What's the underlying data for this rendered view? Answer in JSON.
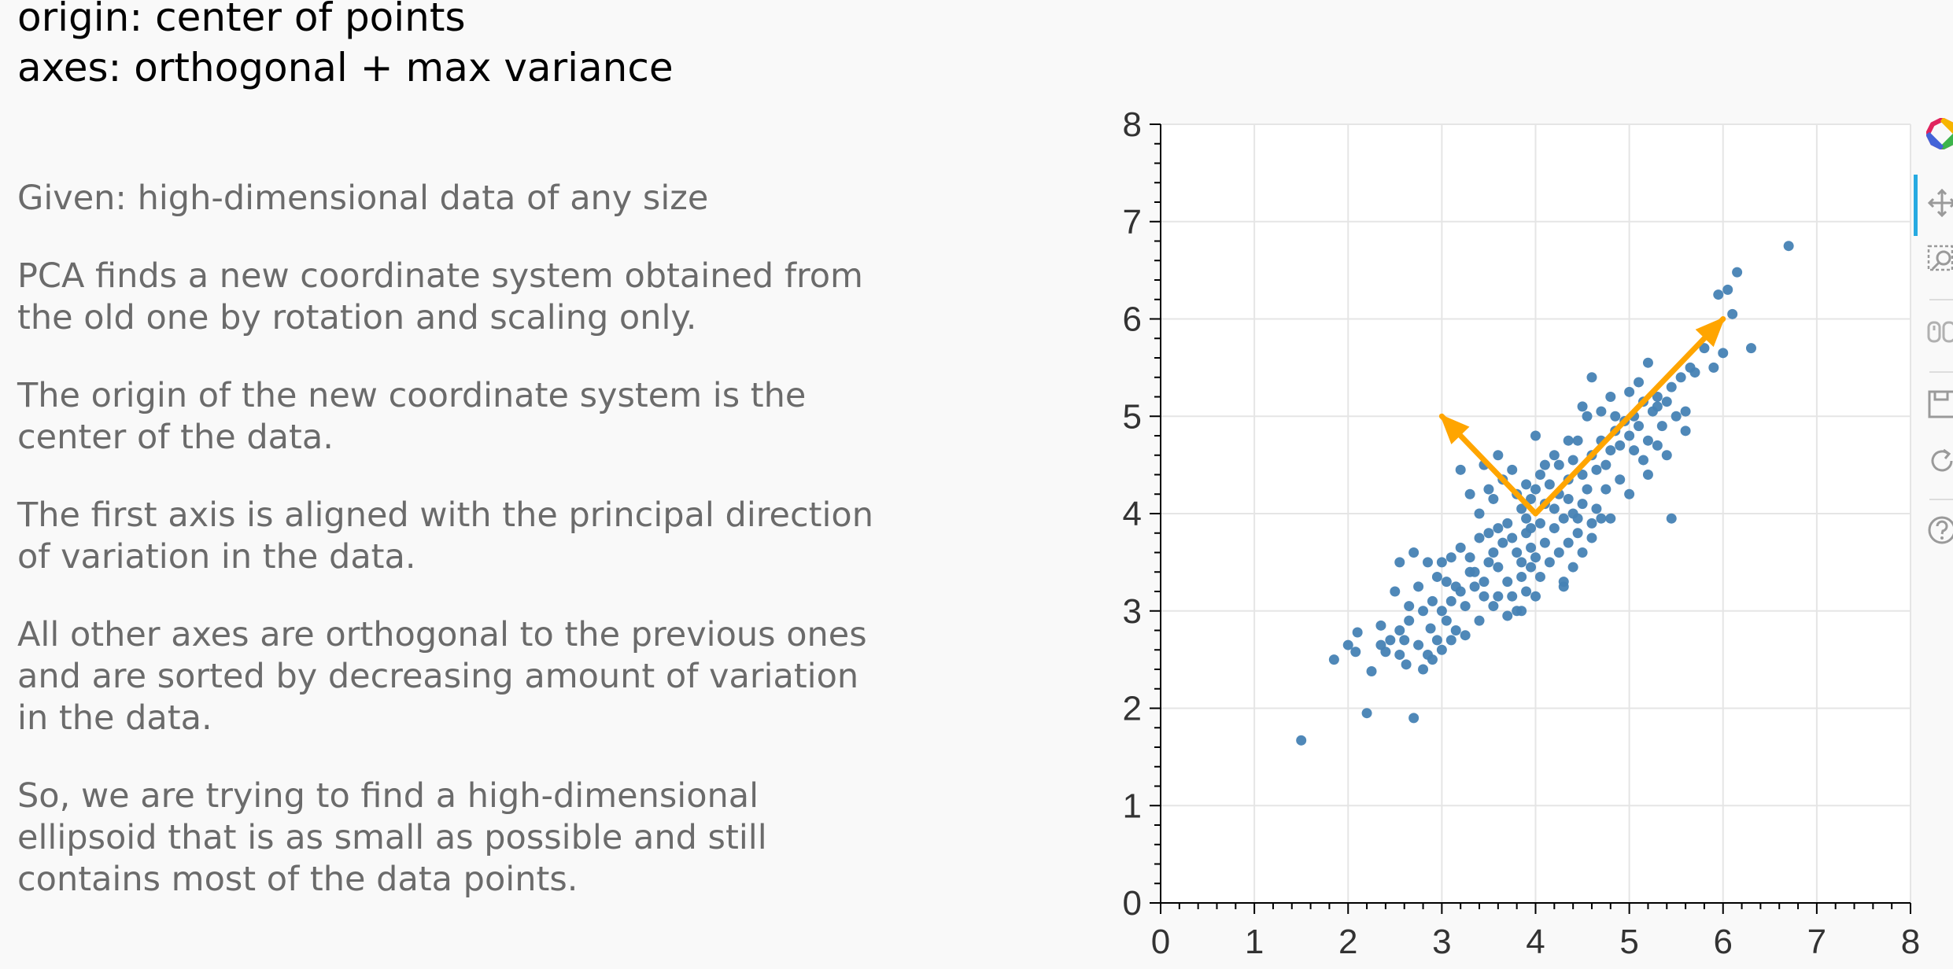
{
  "slide": {
    "title_lines": [
      "origin: center of points",
      "axes: orthogonal + max variance"
    ],
    "paragraphs": [
      "Given: high-dimensional data of any size",
      "PCA finds a new coordinate system obtained from\nthe old one by rotation and scaling only.",
      "The origin of the new coordinate system is the\ncenter of the data.",
      "The first axis is aligned with the principal direction\nof variation in the data.",
      "All other axes are orthogonal to the previous ones\nand are sorted by decreasing amount of variation\nin the data.",
      "So, we are trying to find a high-dimensional\nellipsoid that is as small as possible and still\ncontains most of the data points."
    ]
  },
  "toolbar": {
    "tools": [
      "bokeh-logo-icon",
      "pan-icon",
      "box-zoom-icon",
      "wheel-zoom-icon",
      "save-icon",
      "reset-icon",
      "help-icon"
    ],
    "active_tool": "pan-icon"
  },
  "chart_data": {
    "type": "scatter",
    "title": "",
    "xlabel": "",
    "ylabel": "",
    "xlim": [
      0,
      8
    ],
    "ylim": [
      0,
      8
    ],
    "xticks": [
      "0",
      "1",
      "2",
      "3",
      "4",
      "5",
      "6",
      "7",
      "8"
    ],
    "yticks": [
      "0",
      "1",
      "2",
      "3",
      "4",
      "5",
      "6",
      "7",
      "8"
    ],
    "grid": true,
    "point_color": "#4682b4",
    "arrow_color": "#ffa500",
    "points": [
      [
        1.5,
        1.67
      ],
      [
        1.85,
        2.5
      ],
      [
        2.0,
        2.65
      ],
      [
        2.1,
        2.78
      ],
      [
        2.08,
        2.58
      ],
      [
        2.2,
        1.95
      ],
      [
        2.25,
        2.38
      ],
      [
        2.35,
        2.65
      ],
      [
        2.4,
        2.58
      ],
      [
        2.45,
        2.7
      ],
      [
        2.55,
        2.55
      ],
      [
        2.6,
        2.7
      ],
      [
        2.62,
        2.45
      ],
      [
        2.65,
        2.9
      ],
      [
        2.7,
        1.9
      ],
      [
        2.75,
        2.65
      ],
      [
        2.8,
        2.4
      ],
      [
        2.85,
        2.55
      ],
      [
        2.88,
        2.82
      ],
      [
        2.9,
        2.5
      ],
      [
        2.95,
        2.7
      ],
      [
        3.0,
        2.6
      ],
      [
        2.8,
        3.0
      ],
      [
        2.9,
        3.1
      ],
      [
        3.0,
        3.0
      ],
      [
        3.05,
        2.9
      ],
      [
        3.1,
        3.1
      ],
      [
        3.15,
        2.8
      ],
      [
        3.2,
        3.2
      ],
      [
        3.25,
        2.75
      ],
      [
        3.3,
        3.4
      ],
      [
        3.05,
        3.3
      ],
      [
        2.5,
        3.2
      ],
      [
        2.55,
        3.5
      ],
      [
        2.7,
        3.6
      ],
      [
        2.85,
        3.5
      ],
      [
        3.0,
        3.5
      ],
      [
        3.1,
        3.55
      ],
      [
        3.2,
        3.65
      ],
      [
        3.3,
        3.55
      ],
      [
        3.35,
        3.4
      ],
      [
        3.45,
        3.3
      ],
      [
        3.5,
        3.5
      ],
      [
        3.55,
        3.6
      ],
      [
        3.6,
        3.45
      ],
      [
        3.65,
        3.7
      ],
      [
        3.4,
        3.75
      ],
      [
        3.5,
        3.8
      ],
      [
        3.6,
        3.85
      ],
      [
        3.7,
        3.9
      ],
      [
        3.75,
        3.75
      ],
      [
        3.8,
        3.6
      ],
      [
        3.85,
        3.5
      ],
      [
        3.9,
        3.8
      ],
      [
        3.95,
        3.65
      ],
      [
        3.7,
        3.3
      ],
      [
        3.75,
        3.15
      ],
      [
        3.8,
        3.0
      ],
      [
        3.85,
        3.35
      ],
      [
        3.9,
        3.2
      ],
      [
        3.95,
        3.45
      ],
      [
        4.0,
        3.55
      ],
      [
        4.05,
        3.35
      ],
      [
        4.1,
        3.7
      ],
      [
        4.15,
        3.5
      ],
      [
        4.2,
        3.85
      ],
      [
        4.25,
        3.6
      ],
      [
        4.3,
        3.25
      ],
      [
        4.3,
        3.95
      ],
      [
        4.35,
        3.7
      ],
      [
        4.4,
        4.0
      ],
      [
        4.45,
        3.8
      ],
      [
        4.5,
        4.1
      ],
      [
        3.85,
        4.05
      ],
      [
        3.9,
        3.95
      ],
      [
        3.95,
        4.15
      ],
      [
        4.0,
        4.25
      ],
      [
        4.05,
        4.4
      ],
      [
        4.1,
        4.1
      ],
      [
        4.15,
        4.3
      ],
      [
        4.2,
        4.05
      ],
      [
        4.25,
        4.5
      ],
      [
        4.35,
        4.35
      ],
      [
        4.4,
        4.55
      ],
      [
        4.5,
        4.4
      ],
      [
        4.55,
        4.25
      ],
      [
        4.6,
        4.6
      ],
      [
        4.65,
        4.45
      ],
      [
        4.7,
        4.75
      ],
      [
        4.75,
        4.5
      ],
      [
        4.8,
        4.65
      ],
      [
        4.85,
        4.85
      ],
      [
        4.9,
        4.7
      ],
      [
        4.95,
        4.95
      ],
      [
        5.0,
        4.8
      ],
      [
        5.05,
        5.0
      ],
      [
        5.1,
        4.9
      ],
      [
        5.15,
        5.15
      ],
      [
        5.2,
        4.75
      ],
      [
        5.25,
        5.05
      ],
      [
        5.3,
        5.2
      ],
      [
        5.35,
        4.9
      ],
      [
        5.4,
        5.15
      ],
      [
        5.45,
        5.3
      ],
      [
        5.5,
        5.0
      ],
      [
        5.55,
        5.4
      ],
      [
        5.6,
        5.05
      ],
      [
        5.65,
        5.5
      ],
      [
        5.7,
        5.45
      ],
      [
        5.8,
        5.7
      ],
      [
        5.85,
        5.85
      ],
      [
        5.9,
        5.5
      ],
      [
        6.0,
        5.65
      ],
      [
        6.05,
        6.3
      ],
      [
        6.1,
        6.05
      ],
      [
        6.15,
        6.48
      ],
      [
        6.3,
        5.7
      ],
      [
        6.7,
        6.75
      ],
      [
        5.95,
        6.25
      ],
      [
        5.45,
        3.95
      ],
      [
        5.15,
        4.55
      ],
      [
        5.3,
        4.7
      ],
      [
        5.05,
        4.65
      ],
      [
        4.9,
        4.35
      ],
      [
        4.75,
        4.25
      ],
      [
        4.65,
        4.05
      ],
      [
        4.7,
        3.95
      ],
      [
        4.6,
        3.9
      ],
      [
        4.5,
        3.6
      ],
      [
        4.3,
        3.3
      ],
      [
        3.5,
        4.25
      ],
      [
        3.6,
        4.6
      ],
      [
        3.45,
        4.5
      ],
      [
        3.4,
        4.0
      ],
      [
        3.3,
        4.2
      ],
      [
        3.2,
        4.45
      ],
      [
        3.55,
        4.15
      ],
      [
        3.65,
        4.35
      ],
      [
        3.75,
        4.45
      ],
      [
        3.8,
        4.2
      ],
      [
        3.9,
        4.3
      ],
      [
        4.0,
        4.8
      ],
      [
        4.1,
        4.5
      ],
      [
        4.45,
        4.75
      ],
      [
        4.5,
        5.1
      ],
      [
        4.6,
        5.4
      ],
      [
        4.55,
        5.0
      ],
      [
        4.7,
        5.05
      ],
      [
        4.8,
        5.2
      ],
      [
        4.85,
        5.0
      ],
      [
        5.0,
        5.25
      ],
      [
        5.2,
        5.55
      ],
      [
        5.1,
        5.35
      ],
      [
        5.3,
        5.1
      ],
      [
        4.2,
        4.6
      ],
      [
        4.35,
        4.75
      ],
      [
        4.0,
        3.15
      ],
      [
        3.85,
        3.0
      ],
      [
        3.7,
        2.95
      ],
      [
        3.55,
        3.05
      ],
      [
        3.45,
        3.15
      ],
      [
        3.35,
        3.25
      ],
      [
        3.6,
        3.15
      ],
      [
        3.4,
        2.9
      ],
      [
        3.25,
        3.05
      ],
      [
        3.15,
        3.25
      ],
      [
        2.95,
        3.35
      ],
      [
        2.75,
        3.25
      ],
      [
        2.65,
        3.05
      ],
      [
        2.35,
        2.85
      ],
      [
        2.55,
        2.8
      ],
      [
        3.1,
        2.7
      ],
      [
        4.4,
        3.45
      ],
      [
        4.6,
        3.75
      ],
      [
        4.8,
        3.95
      ],
      [
        5.0,
        4.2
      ],
      [
        5.2,
        4.4
      ],
      [
        5.4,
        4.6
      ],
      [
        5.6,
        4.85
      ],
      [
        4.25,
        4.2
      ],
      [
        4.35,
        4.15
      ],
      [
        4.45,
        3.95
      ],
      [
        4.05,
        3.9
      ],
      [
        3.95,
        3.85
      ]
    ],
    "arrows": [
      {
        "name": "first-principal-axis",
        "from": [
          4.0,
          4.0
        ],
        "to": [
          6.0,
          6.0
        ]
      },
      {
        "name": "second-principal-axis",
        "from": [
          4.0,
          4.0
        ],
        "to": [
          3.0,
          5.0
        ]
      }
    ]
  }
}
